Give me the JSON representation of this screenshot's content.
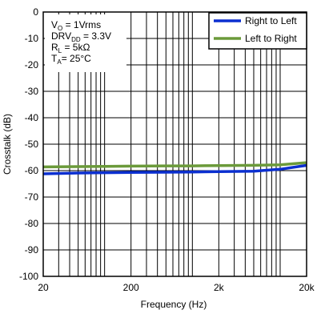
{
  "chart_data": {
    "type": "line",
    "xlabel": "Frequency (Hz)",
    "ylabel": "Crosstalk (dB)",
    "x_scale": "log",
    "xlim": [
      20,
      20000
    ],
    "ylim": [
      -100,
      0
    ],
    "x_ticks": [
      {
        "value": 20,
        "label": "20"
      },
      {
        "value": 200,
        "label": "200"
      },
      {
        "value": 2000,
        "label": "2k"
      },
      {
        "value": 20000,
        "label": "20k"
      }
    ],
    "y_ticks": [
      0,
      -10,
      -20,
      -30,
      -40,
      -50,
      -60,
      -70,
      -80,
      -90,
      -100
    ],
    "grid": true,
    "legend_position": "top-right",
    "conditions": [
      {
        "main": "V",
        "sub": "O",
        "rest": " = 1Vrms"
      },
      {
        "main": "DRV",
        "sub": "DD",
        "rest": " = 3.3V"
      },
      {
        "main": "R",
        "sub": "L",
        "rest": " = 5kΩ"
      },
      {
        "main": "T",
        "sub": "A",
        "rest": "= 25°C"
      }
    ],
    "series": [
      {
        "name": "Right to Left",
        "color": "#0b2fd0",
        "x": [
          20,
          50,
          100,
          200,
          500,
          1000,
          2000,
          5000,
          10000,
          20000
        ],
        "y": [
          -61.2,
          -60.9,
          -60.8,
          -60.7,
          -60.6,
          -60.5,
          -60.4,
          -60.2,
          -59.5,
          -58.0
        ]
      },
      {
        "name": "Left to Right",
        "color": "#6b9a3a",
        "x": [
          20,
          50,
          100,
          200,
          500,
          1000,
          2000,
          5000,
          10000,
          20000
        ],
        "y": [
          -58.6,
          -58.5,
          -58.4,
          -58.3,
          -58.2,
          -58.2,
          -58.1,
          -58.0,
          -57.8,
          -57.0
        ]
      }
    ]
  }
}
